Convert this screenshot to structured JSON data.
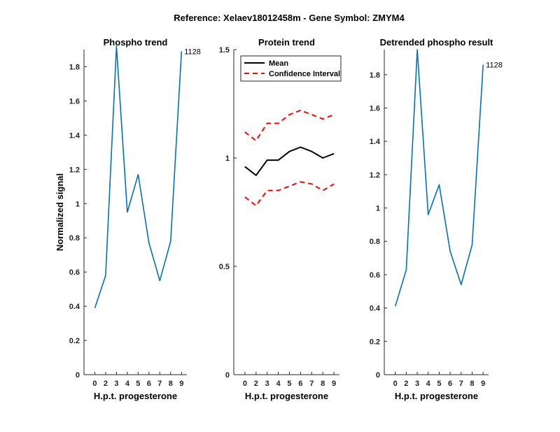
{
  "figure_title": "Reference:  Xelaev18012458m - Gene Symbol:  ZMYM4",
  "chart_data": [
    {
      "type": "line",
      "title": "Phospho trend",
      "xlabel": "H.p.t. progesterone",
      "ylabel": "Normalized signal",
      "x_ticks": [
        "0",
        "2",
        "3",
        "4",
        "5",
        "6",
        "7",
        "8",
        "9"
      ],
      "ylim": [
        0,
        1.9
      ],
      "y_ticks": [
        "0",
        "0.2",
        "0.4",
        "0.6",
        "0.8",
        "1",
        "1.2",
        "1.4",
        "1.6",
        "1.8"
      ],
      "series": [
        {
          "values": [
            0.39,
            0.58,
            1.92,
            0.95,
            1.17,
            0.77,
            0.55,
            0.78,
            1.89
          ],
          "color": "#0072bd"
        }
      ],
      "annotation": "1128"
    },
    {
      "type": "line",
      "title": "Protein trend",
      "xlabel": "H.p.t. progesterone",
      "ylabel": "",
      "x_ticks": [
        "0",
        "2",
        "3",
        "4",
        "5",
        "6",
        "7",
        "8",
        "9"
      ],
      "ylim": [
        0,
        1.5
      ],
      "y_ticks": [
        "0",
        "0.5",
        "1",
        "1.5"
      ],
      "series": [
        {
          "name": "Mean",
          "values": [
            0.96,
            0.92,
            0.99,
            0.99,
            1.03,
            1.05,
            1.03,
            1.0,
            1.02
          ],
          "color": "#000000",
          "style": "solid"
        },
        {
          "name": "Confidence Interval",
          "values": [
            1.12,
            1.08,
            1.16,
            1.16,
            1.2,
            1.22,
            1.2,
            1.18,
            1.2
          ],
          "color": "#ff0000",
          "style": "dashed"
        },
        {
          "values": [
            0.82,
            0.78,
            0.85,
            0.85,
            0.87,
            0.89,
            0.88,
            0.85,
            0.88
          ],
          "color": "#ff0000",
          "style": "dashed"
        }
      ],
      "legend": {
        "position": "top-left",
        "entries": [
          "Mean",
          "Confidence Interval"
        ]
      }
    },
    {
      "type": "line",
      "title": "Detrended phospho result",
      "xlabel": "H.p.t. progesterone",
      "ylabel": "",
      "x_ticks": [
        "0",
        "2",
        "3",
        "4",
        "5",
        "6",
        "7",
        "8",
        "9"
      ],
      "ylim": [
        0,
        1.95
      ],
      "y_ticks": [
        "0",
        "0.2",
        "0.4",
        "0.6",
        "0.8",
        "1",
        "1.2",
        "1.4",
        "1.6",
        "1.8"
      ],
      "series": [
        {
          "values": [
            0.41,
            0.63,
            1.95,
            0.96,
            1.14,
            0.74,
            0.54,
            0.78,
            1.86
          ],
          "color": "#0072bd"
        }
      ],
      "annotation": "1128"
    }
  ]
}
